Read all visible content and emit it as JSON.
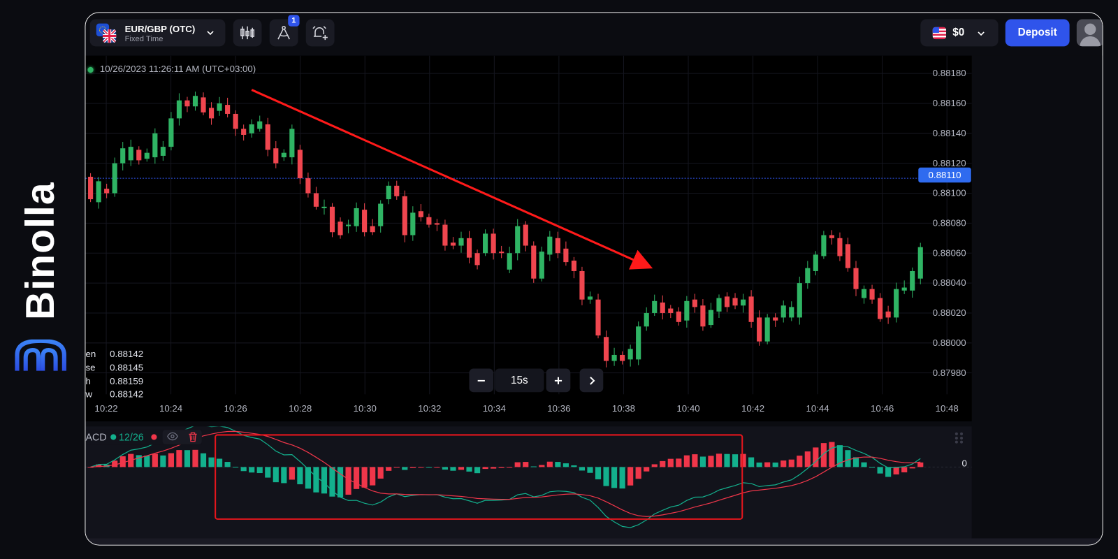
{
  "brand": {
    "name": "Binolla",
    "logo_color": "#2f6bef"
  },
  "header": {
    "symbol": "EUR/GBP (OTC)",
    "mode": "Fixed Time",
    "indicator_badge": "1",
    "balance": "$0",
    "deposit_label": "Deposit",
    "icons": [
      "eu-flag-icon",
      "uk-flag-icon",
      "chevron-down-icon",
      "candles-icon",
      "compass-drawing-icon",
      "alarm-add-icon",
      "us-flag-icon",
      "avatar-icon"
    ]
  },
  "chart": {
    "timestamp": "10/26/2023 11:26:11 AM",
    "timezone": "(UTC+03:00)",
    "price_labels": [
      "0.88180",
      "0.88160",
      "0.88140",
      "0.88120",
      "0.88100",
      "0.88080",
      "0.88060",
      "0.88040",
      "0.88020",
      "0.88000",
      "0.87980"
    ],
    "price_levels": [
      0.8818,
      0.8816,
      0.8814,
      0.8812,
      0.881,
      0.8808,
      0.8806,
      0.8804,
      0.8802,
      0.88,
      0.8798
    ],
    "current_price": "0.88110",
    "current_price_value": 0.8811,
    "time_labels": [
      "10:22",
      "10:24",
      "10:26",
      "10:28",
      "10:30",
      "10:32",
      "10:34",
      "10:36",
      "10:38",
      "10:40",
      "10:42",
      "10:44",
      "10:46",
      "10:48"
    ],
    "legend": [
      {
        "label": "en",
        "value": "0.88142"
      },
      {
        "label": "se",
        "value": "0.88145"
      },
      {
        "label": "h",
        "value": "0.88159"
      },
      {
        "label": "w",
        "value": "0.88142"
      }
    ],
    "timeframe": "15s",
    "up_color": "#2fb464",
    "down_color": "#f0464f",
    "candles_oc": [
      [
        0.88111,
        0.88096
      ],
      [
        0.88094,
        0.88108
      ],
      [
        0.88103,
        0.881
      ],
      [
        0.881,
        0.8812
      ],
      [
        0.8812,
        0.8813
      ],
      [
        0.88122,
        0.88131
      ],
      [
        0.88129,
        0.88122
      ],
      [
        0.88123,
        0.88127
      ],
      [
        0.88124,
        0.8814
      ],
      [
        0.88125,
        0.88131
      ],
      [
        0.88131,
        0.8815
      ],
      [
        0.8815,
        0.88162
      ],
      [
        0.88162,
        0.88158
      ],
      [
        0.88158,
        0.88165
      ],
      [
        0.88164,
        0.88154
      ],
      [
        0.88157,
        0.8815
      ],
      [
        0.88155,
        0.8816
      ],
      [
        0.88159,
        0.88153
      ],
      [
        0.88153,
        0.88143
      ],
      [
        0.88143,
        0.88139
      ],
      [
        0.8814,
        0.88146
      ],
      [
        0.88143,
        0.88148
      ],
      [
        0.88146,
        0.88129
      ],
      [
        0.8813,
        0.8812
      ],
      [
        0.88124,
        0.88127
      ],
      [
        0.88124,
        0.88143
      ],
      [
        0.88129,
        0.8811
      ],
      [
        0.8811,
        0.881
      ],
      [
        0.881,
        0.88091
      ],
      [
        0.8809,
        0.88091
      ],
      [
        0.88091,
        0.88074
      ],
      [
        0.88081,
        0.88072
      ],
      [
        0.88078,
        0.88079
      ],
      [
        0.88078,
        0.8809
      ],
      [
        0.88089,
        0.88074
      ],
      [
        0.88078,
        0.88074
      ],
      [
        0.88078,
        0.88093
      ],
      [
        0.88096,
        0.88105
      ],
      [
        0.88105,
        0.88098
      ],
      [
        0.88098,
        0.88072
      ],
      [
        0.88072,
        0.88087
      ],
      [
        0.88088,
        0.88084
      ],
      [
        0.88084,
        0.88079
      ],
      [
        0.8808,
        0.88079
      ],
      [
        0.88079,
        0.88065
      ],
      [
        0.88067,
        0.88065
      ],
      [
        0.88065,
        0.8807
      ],
      [
        0.8807,
        0.88057
      ],
      [
        0.8806,
        0.88052
      ],
      [
        0.8806,
        0.88073
      ],
      [
        0.88073,
        0.8806
      ],
      [
        0.88061,
        0.8806
      ],
      [
        0.88049,
        0.8806
      ],
      [
        0.8806,
        0.88078
      ],
      [
        0.88079,
        0.88065
      ],
      [
        0.88065,
        0.88043
      ],
      [
        0.88043,
        0.88061
      ],
      [
        0.88059,
        0.88071
      ],
      [
        0.8807,
        0.8806
      ],
      [
        0.88063,
        0.88054
      ],
      [
        0.88055,
        0.88048
      ],
      [
        0.88048,
        0.88029
      ],
      [
        0.88029,
        0.88031
      ],
      [
        0.88029,
        0.88005
      ],
      [
        0.88004,
        0.87988
      ],
      [
        0.87988,
        0.87992
      ],
      [
        0.87992,
        0.87988
      ],
      [
        0.87989,
        0.87996
      ],
      [
        0.87989,
        0.88011
      ],
      [
        0.88011,
        0.8802
      ],
      [
        0.8802,
        0.88028
      ],
      [
        0.88027,
        0.8802
      ],
      [
        0.88023,
        0.8802
      ],
      [
        0.88021,
        0.88014
      ],
      [
        0.88015,
        0.88028
      ],
      [
        0.88029,
        0.88024
      ],
      [
        0.88025,
        0.88011
      ],
      [
        0.88012,
        0.88022
      ],
      [
        0.88021,
        0.8803
      ],
      [
        0.88031,
        0.88024
      ],
      [
        0.8803,
        0.88025
      ],
      [
        0.88025,
        0.88029
      ],
      [
        0.88031,
        0.88014
      ],
      [
        0.88017,
        0.88001
      ],
      [
        0.88001,
        0.88017
      ],
      [
        0.88017,
        0.88015
      ],
      [
        0.88017,
        0.88025
      ],
      [
        0.88017,
        0.88024
      ],
      [
        0.88017,
        0.8804
      ],
      [
        0.8804,
        0.8805
      ],
      [
        0.88048,
        0.88059
      ],
      [
        0.88058,
        0.88072
      ],
      [
        0.88072,
        0.8807
      ],
      [
        0.8807,
        0.88058
      ],
      [
        0.88066,
        0.8805
      ],
      [
        0.8805,
        0.88036
      ],
      [
        0.8803,
        0.88036
      ],
      [
        0.88036,
        0.88029
      ],
      [
        0.8803,
        0.88016
      ],
      [
        0.88021,
        0.88017
      ],
      [
        0.88017,
        0.88036
      ],
      [
        0.88035,
        0.88037
      ],
      [
        0.88035,
        0.88048
      ],
      [
        0.88043,
        0.88064
      ]
    ],
    "annotation_color": "#ff1a1a"
  },
  "macd": {
    "name": "ACD",
    "params": "12/26",
    "zero_label": "0",
    "macd_color": "#13b08d",
    "signal_color": "#f0364a",
    "icons": [
      "eye-icon",
      "trash-icon",
      "drag-handle-icon"
    ]
  }
}
